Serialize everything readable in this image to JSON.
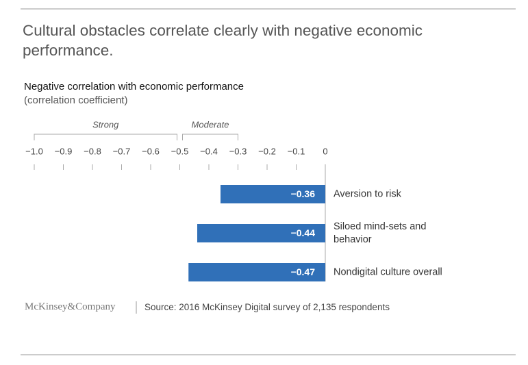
{
  "chart_data": {
    "type": "bar",
    "orientation": "horizontal",
    "title": "Cultural obstacles correlate clearly with negative economic performance.",
    "subtitle": "Negative correlation with economic performance",
    "axis_label": "(correlation coefficient)",
    "categories": [
      "Aversion to risk",
      "Siloed mind-sets and behavior",
      "Nondigital culture overall"
    ],
    "values": [
      -0.36,
      -0.44,
      -0.47
    ],
    "value_labels": [
      "−0.36",
      "−0.44",
      "−0.47"
    ],
    "color": "#3070b8",
    "xlim": [
      -1.0,
      0
    ],
    "xticks": [
      {
        "value": -1.0,
        "label": "−1.0"
      },
      {
        "value": -0.9,
        "label": "−0.9"
      },
      {
        "value": -0.8,
        "label": "−0.8"
      },
      {
        "value": -0.7,
        "label": "−0.7"
      },
      {
        "value": -0.6,
        "label": "−0.6"
      },
      {
        "value": -0.5,
        "label": "−0.5"
      },
      {
        "value": -0.4,
        "label": "−0.4"
      },
      {
        "value": -0.3,
        "label": "−0.3"
      },
      {
        "value": -0.2,
        "label": "−0.2"
      },
      {
        "value": -0.1,
        "label": "−0.1"
      },
      0
    ],
    "annotations": [
      {
        "text": "Strong",
        "range": [
          -1.0,
          -0.5
        ]
      },
      {
        "text": "Moderate",
        "range": [
          -0.5,
          -0.3
        ]
      }
    ],
    "logo": "McKinsey&Company",
    "source": "Source: 2016 McKinsey Digital survey of 2,135 respondents"
  }
}
